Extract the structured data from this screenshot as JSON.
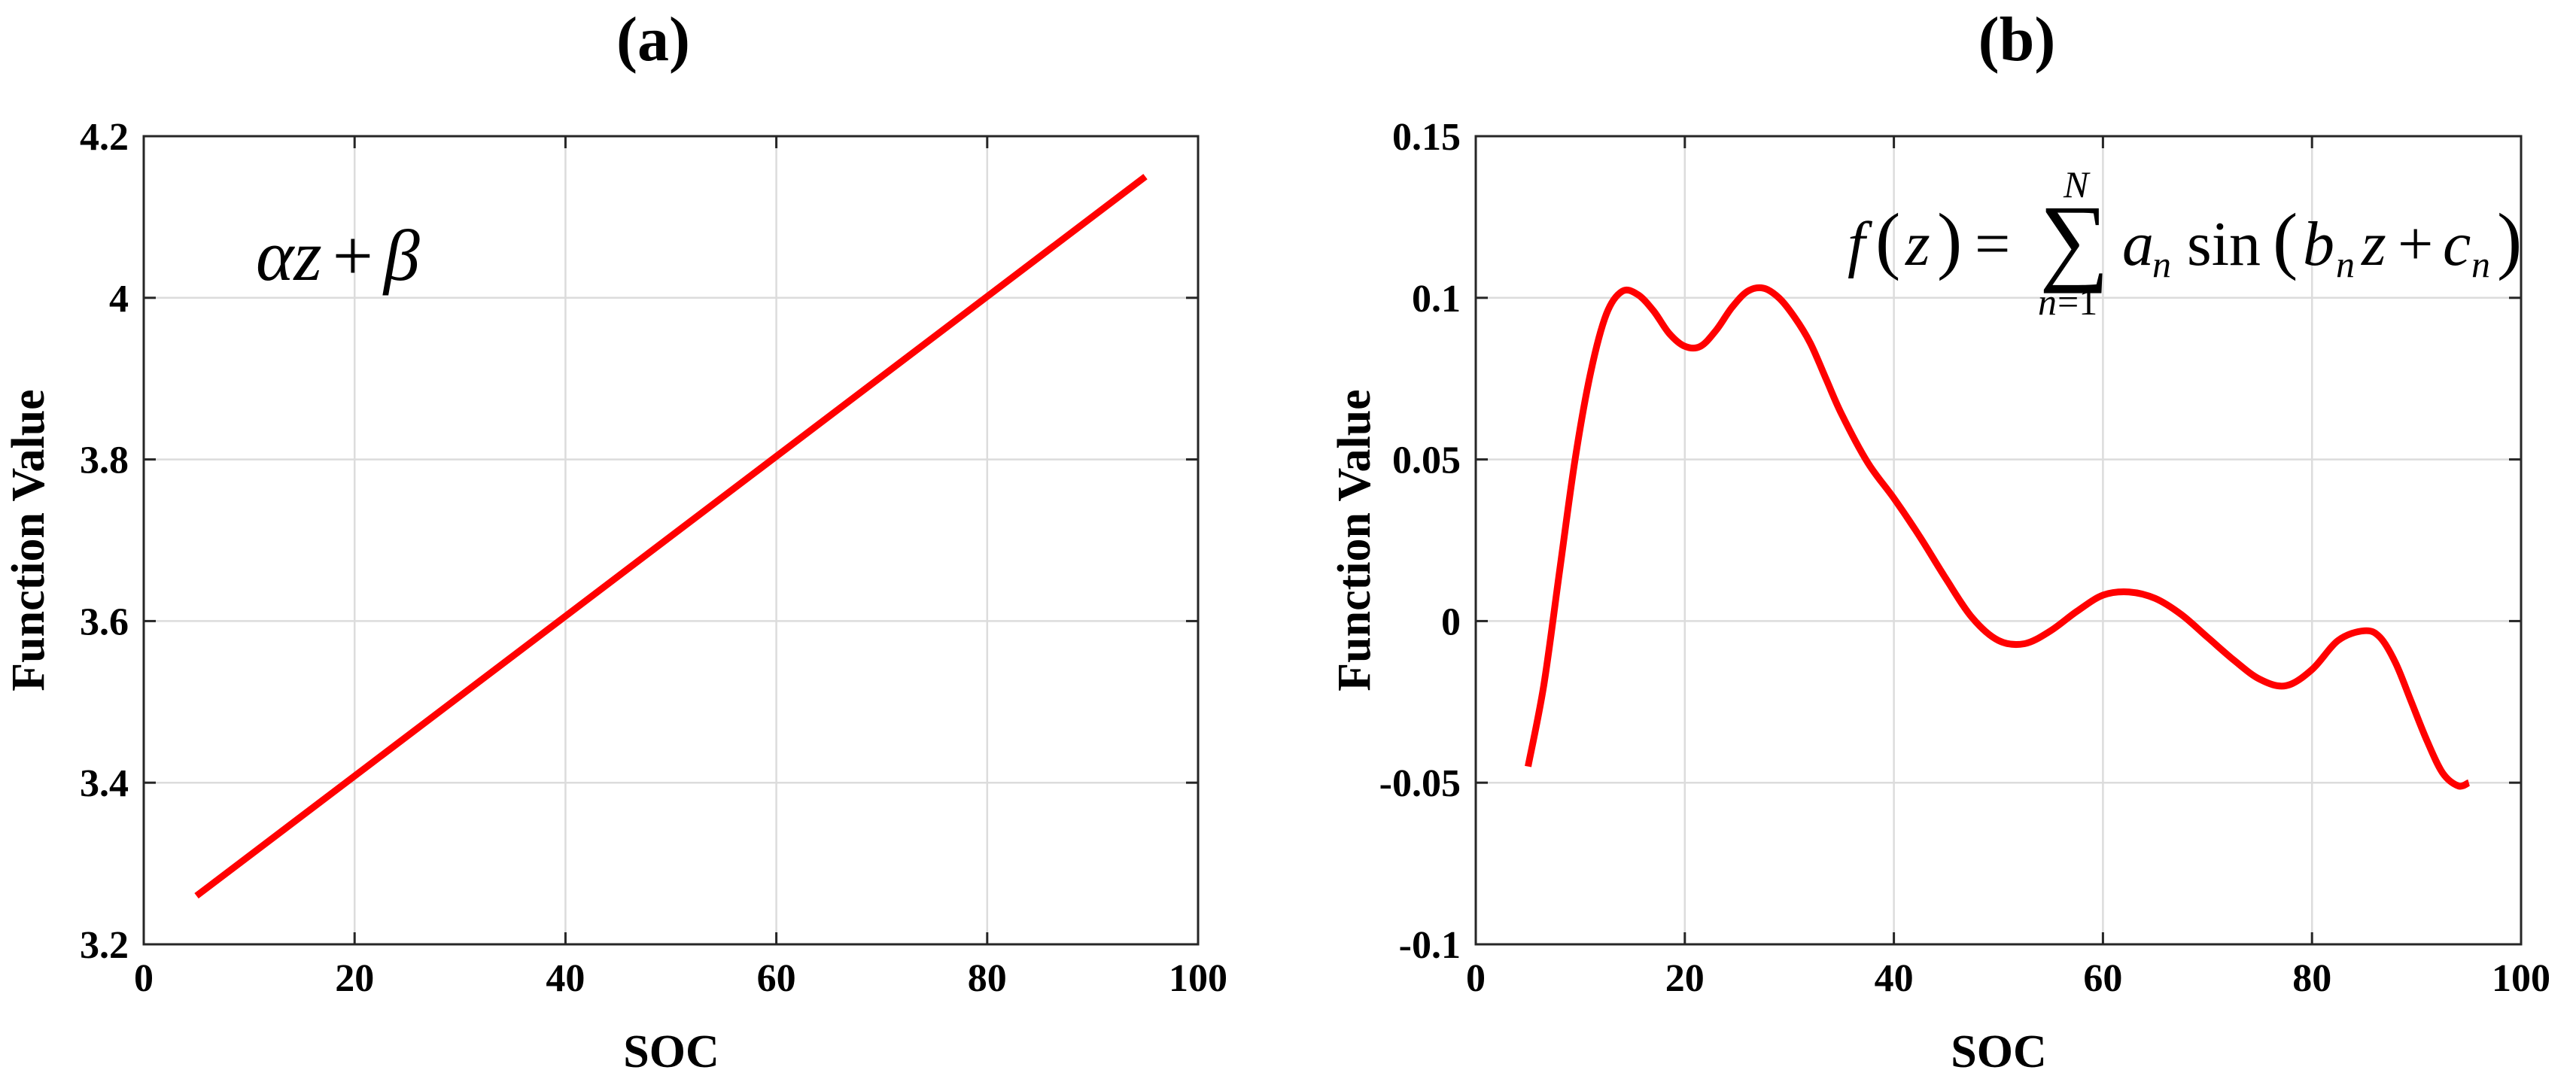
{
  "chart_data": [
    {
      "panel": "(a)",
      "type": "line",
      "xlabel": "SOC",
      "ylabel": "Function Value",
      "xlim": [
        0,
        100
      ],
      "ylim": [
        3.2,
        4.2
      ],
      "xticks": [
        "0",
        "20",
        "40",
        "60",
        "80",
        "100"
      ],
      "yticks": [
        "3.2",
        "3.4",
        "3.6",
        "3.8",
        "4",
        "4.2"
      ],
      "grid": true,
      "annotation": "αz + β",
      "series": [
        {
          "color": "#ff0000",
          "x": [
            5,
            95
          ],
          "y": [
            3.26,
            4.15
          ]
        }
      ]
    },
    {
      "panel": "(b)",
      "type": "line",
      "xlabel": "SOC",
      "ylabel": "Function Value",
      "xlim": [
        0,
        100
      ],
      "ylim": [
        -0.1,
        0.15
      ],
      "xticks": [
        "0",
        "20",
        "40",
        "60",
        "80",
        "100"
      ],
      "yticks": [
        "-0.1",
        "-0.05",
        "0",
        "0.05",
        "0.1",
        "0.15"
      ],
      "grid": true,
      "annotation": "f(z) = Σ_{n=1}^{N} a_n sin(b_n z + c_n)",
      "series": [
        {
          "color": "#ff0000",
          "x": [
            5,
            6.5,
            8,
            9.5,
            11,
            12.5,
            14,
            15.5,
            17,
            18.5,
            20,
            21.5,
            23,
            24.5,
            26,
            27.5,
            29,
            30.5,
            32,
            33.5,
            35,
            37.5,
            40,
            42.5,
            45,
            47.5,
            50,
            52.5,
            55,
            57.5,
            60,
            62.5,
            65,
            67.5,
            70,
            72.5,
            75,
            77.5,
            80,
            82.5,
            85,
            86.5,
            88,
            89.5,
            91,
            92.5,
            94,
            95
          ],
          "y": [
            -0.045,
            -0.02,
            0.015,
            0.05,
            0.077,
            0.095,
            0.102,
            0.101,
            0.096,
            0.089,
            0.085,
            0.085,
            0.09,
            0.097,
            0.102,
            0.103,
            0.1,
            0.094,
            0.086,
            0.075,
            0.064,
            0.049,
            0.038,
            0.026,
            0.013,
            0.001,
            -0.006,
            -0.007,
            -0.003,
            0.003,
            0.008,
            0.009,
            0.007,
            0.002,
            -0.005,
            -0.012,
            -0.018,
            -0.02,
            -0.015,
            -0.006,
            -0.003,
            -0.005,
            -0.013,
            -0.025,
            -0.037,
            -0.047,
            -0.051,
            -0.05
          ]
        }
      ]
    }
  ]
}
